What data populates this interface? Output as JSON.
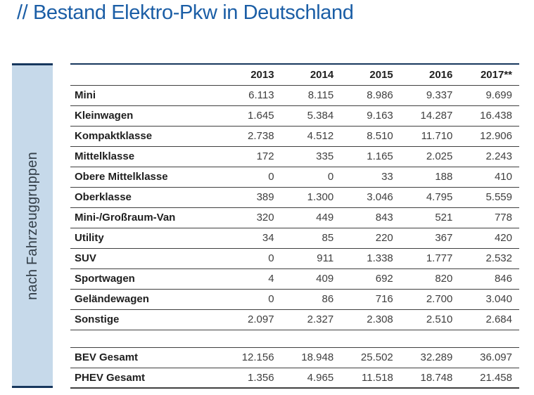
{
  "page": {
    "title": "// Bestand Elektro-Pkw in Deutschland"
  },
  "colors": {
    "title_blue": "#1b5ea6",
    "navy_accent": "#17375d",
    "sidebar_fill": "#c6d9ea",
    "table_border": "#3f3f3f",
    "label_text": "#1f1f1f",
    "number_text": "#3f3f3f"
  },
  "sidebar": {
    "label": "nach Fahrzeuggruppen"
  },
  "table": {
    "columns": [
      "",
      "2013",
      "2014",
      "2015",
      "2016",
      "2017**"
    ],
    "rows": [
      {
        "label": "Mini",
        "values": [
          "6.113",
          "8.115",
          "8.986",
          "9.337",
          "9.699"
        ]
      },
      {
        "label": "Kleinwagen",
        "values": [
          "1.645",
          "5.384",
          "9.163",
          "14.287",
          "16.438"
        ]
      },
      {
        "label": "Kompaktklasse",
        "values": [
          "2.738",
          "4.512",
          "8.510",
          "11.710",
          "12.906"
        ]
      },
      {
        "label": "Mittelklasse",
        "values": [
          "172",
          "335",
          "1.165",
          "2.025",
          "2.243"
        ]
      },
      {
        "label": "Obere Mittelklasse",
        "values": [
          "0",
          "0",
          "33",
          "188",
          "410"
        ]
      },
      {
        "label": "Oberklasse",
        "values": [
          "389",
          "1.300",
          "3.046",
          "4.795",
          "5.559"
        ]
      },
      {
        "label": "Mini-/Großraum-Van",
        "values": [
          "320",
          "449",
          "843",
          "521",
          "778"
        ]
      },
      {
        "label": "Utility",
        "values": [
          "34",
          "85",
          "220",
          "367",
          "420"
        ]
      },
      {
        "label": "SUV",
        "values": [
          "0",
          "911",
          "1.338",
          "1.777",
          "2.532"
        ]
      },
      {
        "label": "Sportwagen",
        "values": [
          "4",
          "409",
          "692",
          "820",
          "846"
        ]
      },
      {
        "label": "Geländewagen",
        "values": [
          "0",
          "86",
          "716",
          "2.700",
          "3.040"
        ]
      },
      {
        "label": "Sonstige",
        "values": [
          "2.097",
          "2.327",
          "2.308",
          "2.510",
          "2.684"
        ]
      }
    ],
    "summary_rows": [
      {
        "label": "BEV Gesamt",
        "values": [
          "12.156",
          "18.948",
          "25.502",
          "32.289",
          "36.097"
        ]
      },
      {
        "label": "PHEV Gesamt",
        "values": [
          "1.356",
          "4.965",
          "11.518",
          "18.748",
          "21.458"
        ]
      }
    ]
  },
  "chart_data": {
    "type": "table",
    "title": "// Bestand Elektro-Pkw in Deutschland",
    "group_label": "nach Fahrzeuggruppen",
    "columns": [
      "2013",
      "2014",
      "2015",
      "2016",
      "2017**"
    ],
    "rows": [
      {
        "label": "Mini",
        "values": [
          6113,
          8115,
          8986,
          9337,
          9699
        ]
      },
      {
        "label": "Kleinwagen",
        "values": [
          1645,
          5384,
          9163,
          14287,
          16438
        ]
      },
      {
        "label": "Kompaktklasse",
        "values": [
          2738,
          4512,
          8510,
          11710,
          12906
        ]
      },
      {
        "label": "Mittelklasse",
        "values": [
          172,
          335,
          1165,
          2025,
          2243
        ]
      },
      {
        "label": "Obere Mittelklasse",
        "values": [
          0,
          0,
          33,
          188,
          410
        ]
      },
      {
        "label": "Oberklasse",
        "values": [
          389,
          1300,
          3046,
          4795,
          5559
        ]
      },
      {
        "label": "Mini-/Großraum-Van",
        "values": [
          320,
          449,
          843,
          521,
          778
        ]
      },
      {
        "label": "Utility",
        "values": [
          34,
          85,
          220,
          367,
          420
        ]
      },
      {
        "label": "SUV",
        "values": [
          0,
          911,
          1338,
          1777,
          2532
        ]
      },
      {
        "label": "Sportwagen",
        "values": [
          4,
          409,
          692,
          820,
          846
        ]
      },
      {
        "label": "Geländewagen",
        "values": [
          0,
          86,
          716,
          2700,
          3040
        ]
      },
      {
        "label": "Sonstige",
        "values": [
          2097,
          2327,
          2308,
          2510,
          2684
        ]
      },
      {
        "label": "BEV Gesamt",
        "values": [
          12156,
          18948,
          25502,
          32289,
          36097
        ]
      },
      {
        "label": "PHEV Gesamt",
        "values": [
          1356,
          4965,
          11518,
          18748,
          21458
        ]
      }
    ]
  }
}
